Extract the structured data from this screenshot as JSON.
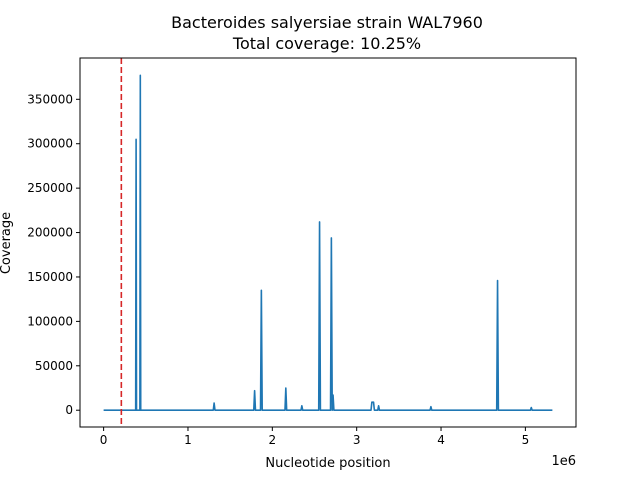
{
  "chart_data": {
    "type": "line",
    "title": "Bacteroides salyersiae strain WAL7960",
    "subtitle": "Total coverage: 10.25%",
    "xlabel": "Nucleotide position",
    "ylabel": "Coverage",
    "x_offset_label": "1e6",
    "x_scale": 1000000,
    "xlim": [
      -280000,
      5600000
    ],
    "ylim": [
      -18900,
      396500
    ],
    "x_ticks": [
      0,
      1000000,
      2000000,
      3000000,
      4000000,
      5000000
    ],
    "x_tick_labels": [
      "0",
      "1",
      "2",
      "3",
      "4",
      "5"
    ],
    "y_ticks": [
      0,
      50000,
      100000,
      150000,
      200000,
      250000,
      300000,
      350000
    ],
    "y_tick_labels": [
      "0",
      "50000",
      "100000",
      "150000",
      "200000",
      "250000",
      "300000",
      "350000"
    ],
    "grid": false,
    "colors": {
      "series": "#1f77b4",
      "marker_line": "#d62728"
    },
    "reference_line_x": 210000,
    "series": [
      {
        "x": [
          0,
          380000,
          385000,
          390000,
          400000,
          430000,
          435000,
          440000,
          450000,
          1300000,
          1310000,
          1320000,
          1780000,
          1790000,
          1800000,
          1860000,
          1870000,
          1880000,
          2150000,
          2160000,
          2170000,
          2340000,
          2350000,
          2360000,
          2550000,
          2560000,
          2570000,
          2690000,
          2700000,
          2710000,
          2720000,
          2730000,
          3170000,
          3180000,
          3200000,
          3210000,
          3250000,
          3260000,
          3270000,
          3870000,
          3880000,
          3890000,
          4660000,
          4670000,
          4680000,
          5060000,
          5070000,
          5080000,
          5320000
        ],
        "y": [
          0,
          0,
          305000,
          0,
          0,
          0,
          377000,
          0,
          0,
          0,
          8000,
          0,
          0,
          22000,
          0,
          0,
          135000,
          0,
          0,
          25000,
          0,
          0,
          5000,
          0,
          0,
          212000,
          0,
          0,
          194000,
          0,
          17000,
          0,
          0,
          9000,
          9000,
          0,
          0,
          5000,
          0,
          0,
          4000,
          0,
          0,
          146000,
          0,
          0,
          3000,
          0,
          0
        ]
      }
    ]
  }
}
